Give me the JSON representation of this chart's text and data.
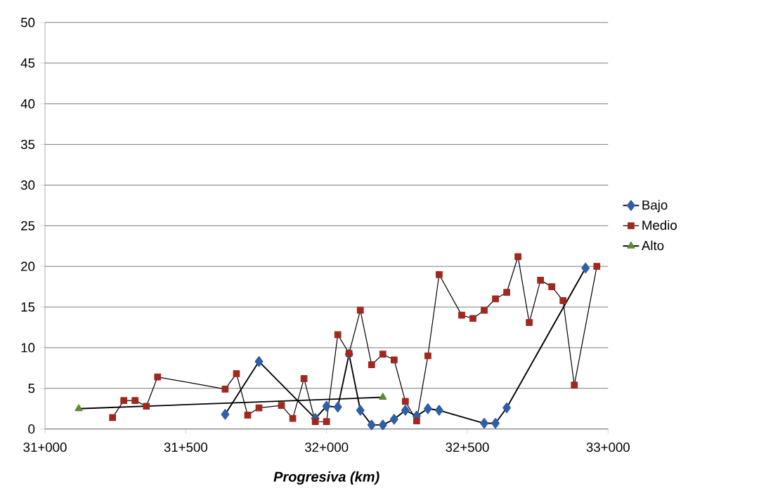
{
  "chart_data": {
    "type": "line",
    "xlabel": "Progresiva (km)",
    "categories": [
      "31+000",
      null,
      null,
      null,
      null,
      null,
      null,
      null,
      null,
      null,
      null,
      null,
      null,
      null,
      null,
      null,
      null,
      null,
      null,
      null,
      null,
      null,
      null,
      null,
      null,
      "31+500",
      null,
      null,
      null,
      null,
      null,
      null,
      null,
      null,
      null,
      null,
      null,
      null,
      null,
      null,
      null,
      null,
      null,
      null,
      null,
      null,
      null,
      null,
      null,
      null,
      "32+000",
      null,
      null,
      null,
      null,
      null,
      null,
      null,
      null,
      null,
      null,
      null,
      null,
      null,
      null,
      null,
      null,
      null,
      null,
      null,
      null,
      null,
      null,
      null,
      null,
      "32+500",
      null,
      null,
      null,
      null,
      null,
      null,
      null,
      null,
      null,
      null,
      null,
      null,
      null,
      null,
      null,
      null,
      null,
      null,
      null,
      null,
      null,
      null,
      null,
      null,
      "33+000"
    ],
    "ylim": [
      0,
      50
    ],
    "yticks": [
      0,
      5,
      10,
      15,
      20,
      25,
      30,
      35,
      40,
      45,
      50
    ],
    "grid": "y",
    "legend": "right",
    "series": [
      {
        "name": "Bajo",
        "color": "#2e5fa8",
        "marker": "diamond",
        "values": [
          null,
          null,
          null,
          null,
          null,
          null,
          null,
          null,
          null,
          null,
          null,
          null,
          null,
          null,
          null,
          null,
          null,
          null,
          null,
          null,
          null,
          null,
          null,
          null,
          null,
          null,
          null,
          null,
          null,
          null,
          null,
          null,
          1.8,
          null,
          null,
          null,
          null,
          null,
          8.3,
          null,
          null,
          null,
          null,
          null,
          null,
          null,
          null,
          null,
          1.3,
          null,
          2.8,
          null,
          2.7,
          null,
          9.2,
          null,
          2.3,
          null,
          0.5,
          null,
          0.5,
          null,
          1.2,
          null,
          2.3,
          null,
          1.6,
          null,
          2.5,
          null,
          2.3,
          null,
          null,
          null,
          null,
          null,
          null,
          null,
          0.7,
          null,
          0.7,
          null,
          2.6,
          null,
          null,
          null,
          null,
          null,
          null,
          null,
          null,
          null,
          null,
          null,
          null,
          null,
          19.8,
          null,
          null,
          null,
          null
        ]
      },
      {
        "name": "Medio",
        "color": "#a0281e",
        "marker": "square",
        "values": [
          null,
          null,
          null,
          null,
          null,
          null,
          null,
          null,
          null,
          null,
          null,
          null,
          1.4,
          null,
          3.5,
          null,
          3.5,
          null,
          2.8,
          null,
          6.4,
          null,
          null,
          null,
          null,
          null,
          null,
          null,
          null,
          null,
          null,
          null,
          4.9,
          null,
          6.8,
          null,
          1.7,
          null,
          2.6,
          null,
          null,
          null,
          2.9,
          null,
          1.3,
          null,
          6.2,
          null,
          0.9,
          null,
          0.9,
          null,
          11.6,
          null,
          9.3,
          null,
          14.6,
          null,
          7.9,
          null,
          9.2,
          null,
          8.5,
          null,
          3.4,
          null,
          1.0,
          null,
          9.0,
          null,
          19.0,
          null,
          null,
          null,
          14.0,
          null,
          13.6,
          null,
          14.6,
          null,
          16.0,
          null,
          16.8,
          null,
          21.2,
          null,
          13.1,
          null,
          18.3,
          null,
          17.5,
          null,
          15.8,
          null,
          5.4,
          null,
          null,
          null,
          20.0,
          null,
          null
        ]
      },
      {
        "name": "Alto",
        "color": "#5b8a3a",
        "marker": "triangle",
        "values": [
          null,
          null,
          null,
          null,
          null,
          null,
          2.5,
          null,
          null,
          null,
          null,
          null,
          null,
          null,
          null,
          null,
          null,
          null,
          null,
          null,
          null,
          null,
          null,
          null,
          null,
          null,
          null,
          null,
          null,
          null,
          null,
          null,
          null,
          null,
          null,
          null,
          null,
          null,
          null,
          null,
          null,
          null,
          null,
          null,
          null,
          null,
          null,
          null,
          null,
          null,
          null,
          null,
          null,
          null,
          null,
          null,
          null,
          null,
          null,
          null,
          3.9,
          null,
          null,
          null,
          null,
          null,
          null,
          null,
          null,
          null,
          null,
          null,
          null,
          null,
          null,
          null,
          null,
          null,
          null,
          null,
          null,
          null,
          null,
          null,
          null,
          null,
          null,
          null,
          null,
          null,
          null,
          null,
          null,
          null,
          null,
          null,
          null,
          null,
          null,
          null,
          null
        ]
      }
    ]
  }
}
